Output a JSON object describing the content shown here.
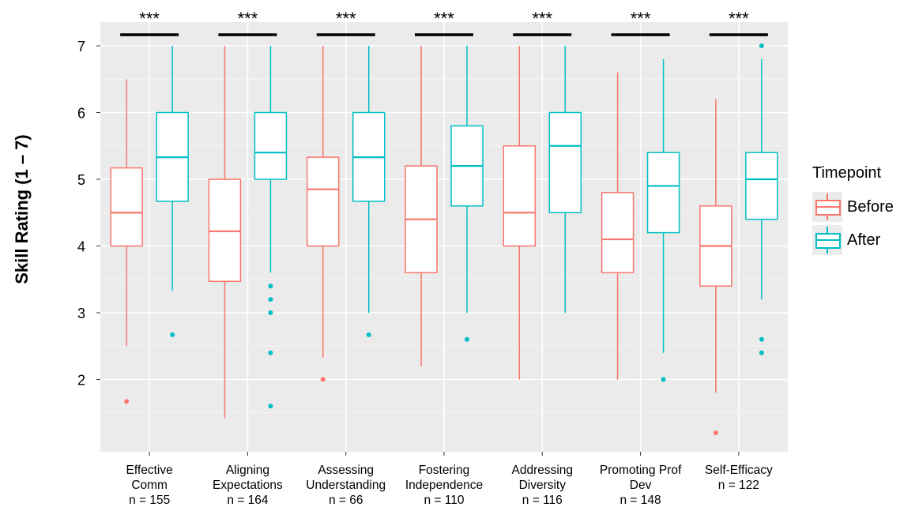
{
  "chart_data": {
    "type": "boxplot",
    "ylabel": "Skill Rating (1 – 7)",
    "ylim": [
      1,
      7.3
    ],
    "yticks": [
      "2",
      "3",
      "4",
      "5",
      "6",
      "7"
    ],
    "categories": [
      [
        "Effective",
        "Comm",
        "n = 155"
      ],
      [
        "Aligning",
        "Expectations",
        "n = 164"
      ],
      [
        "Assessing",
        "Understanding",
        "n = 66"
      ],
      [
        "Fostering",
        "Independence",
        "n = 110"
      ],
      [
        "Addressing",
        "Diversity",
        "n = 116"
      ],
      [
        "Promoting Prof",
        "Dev",
        "n = 148"
      ],
      [
        "Self-Efficacy",
        "n = 122"
      ]
    ],
    "significance": [
      "***",
      "***",
      "***",
      "***",
      "***",
      "***",
      "***"
    ],
    "legend": {
      "title": "Timepoint",
      "placement": "right"
    },
    "grid": true,
    "series": [
      {
        "name": "Before",
        "color": "#f8766d",
        "boxes": [
          {
            "low": 2.5,
            "q1": 4.0,
            "median": 4.5,
            "q3": 5.17,
            "high": 6.5,
            "outliers": [
              1.67
            ]
          },
          {
            "low": 1.42,
            "q1": 3.47,
            "median": 4.22,
            "q3": 5.0,
            "high": 7.0,
            "outliers": []
          },
          {
            "low": 2.33,
            "q1": 4.0,
            "median": 4.85,
            "q3": 5.33,
            "high": 7.0,
            "outliers": [
              2.0
            ]
          },
          {
            "low": 2.2,
            "q1": 3.6,
            "median": 4.4,
            "q3": 5.2,
            "high": 7.0,
            "outliers": []
          },
          {
            "low": 2.0,
            "q1": 4.0,
            "median": 4.5,
            "q3": 5.5,
            "high": 7.0,
            "outliers": []
          },
          {
            "low": 2.0,
            "q1": 3.6,
            "median": 4.1,
            "q3": 4.8,
            "high": 6.6,
            "outliers": []
          },
          {
            "low": 1.8,
            "q1": 3.4,
            "median": 4.0,
            "q3": 4.6,
            "high": 6.2,
            "outliers": [
              1.2
            ]
          }
        ]
      },
      {
        "name": "After",
        "color": "#00bfc4",
        "boxes": [
          {
            "low": 3.33,
            "q1": 4.67,
            "median": 5.33,
            "q3": 6.0,
            "high": 7.0,
            "outliers": [
              2.67
            ]
          },
          {
            "low": 3.6,
            "q1": 5.0,
            "median": 5.4,
            "q3": 6.0,
            "high": 7.0,
            "outliers": [
              3.4,
              3.2,
              3.0,
              2.4,
              1.6
            ]
          },
          {
            "low": 3.0,
            "q1": 4.67,
            "median": 5.33,
            "q3": 6.0,
            "high": 7.0,
            "outliers": [
              2.67
            ]
          },
          {
            "low": 3.0,
            "q1": 4.6,
            "median": 5.2,
            "q3": 5.8,
            "high": 7.0,
            "outliers": [
              2.6
            ]
          },
          {
            "low": 3.0,
            "q1": 4.5,
            "median": 5.5,
            "q3": 6.0,
            "high": 7.0,
            "outliers": []
          },
          {
            "low": 2.4,
            "q1": 4.2,
            "median": 4.9,
            "q3": 5.4,
            "high": 6.8,
            "outliers": [
              2.0
            ]
          },
          {
            "low": 3.2,
            "q1": 4.4,
            "median": 5.0,
            "q3": 5.4,
            "high": 6.8,
            "outliers": [
              7.0,
              2.6,
              2.4
            ]
          }
        ]
      }
    ]
  }
}
